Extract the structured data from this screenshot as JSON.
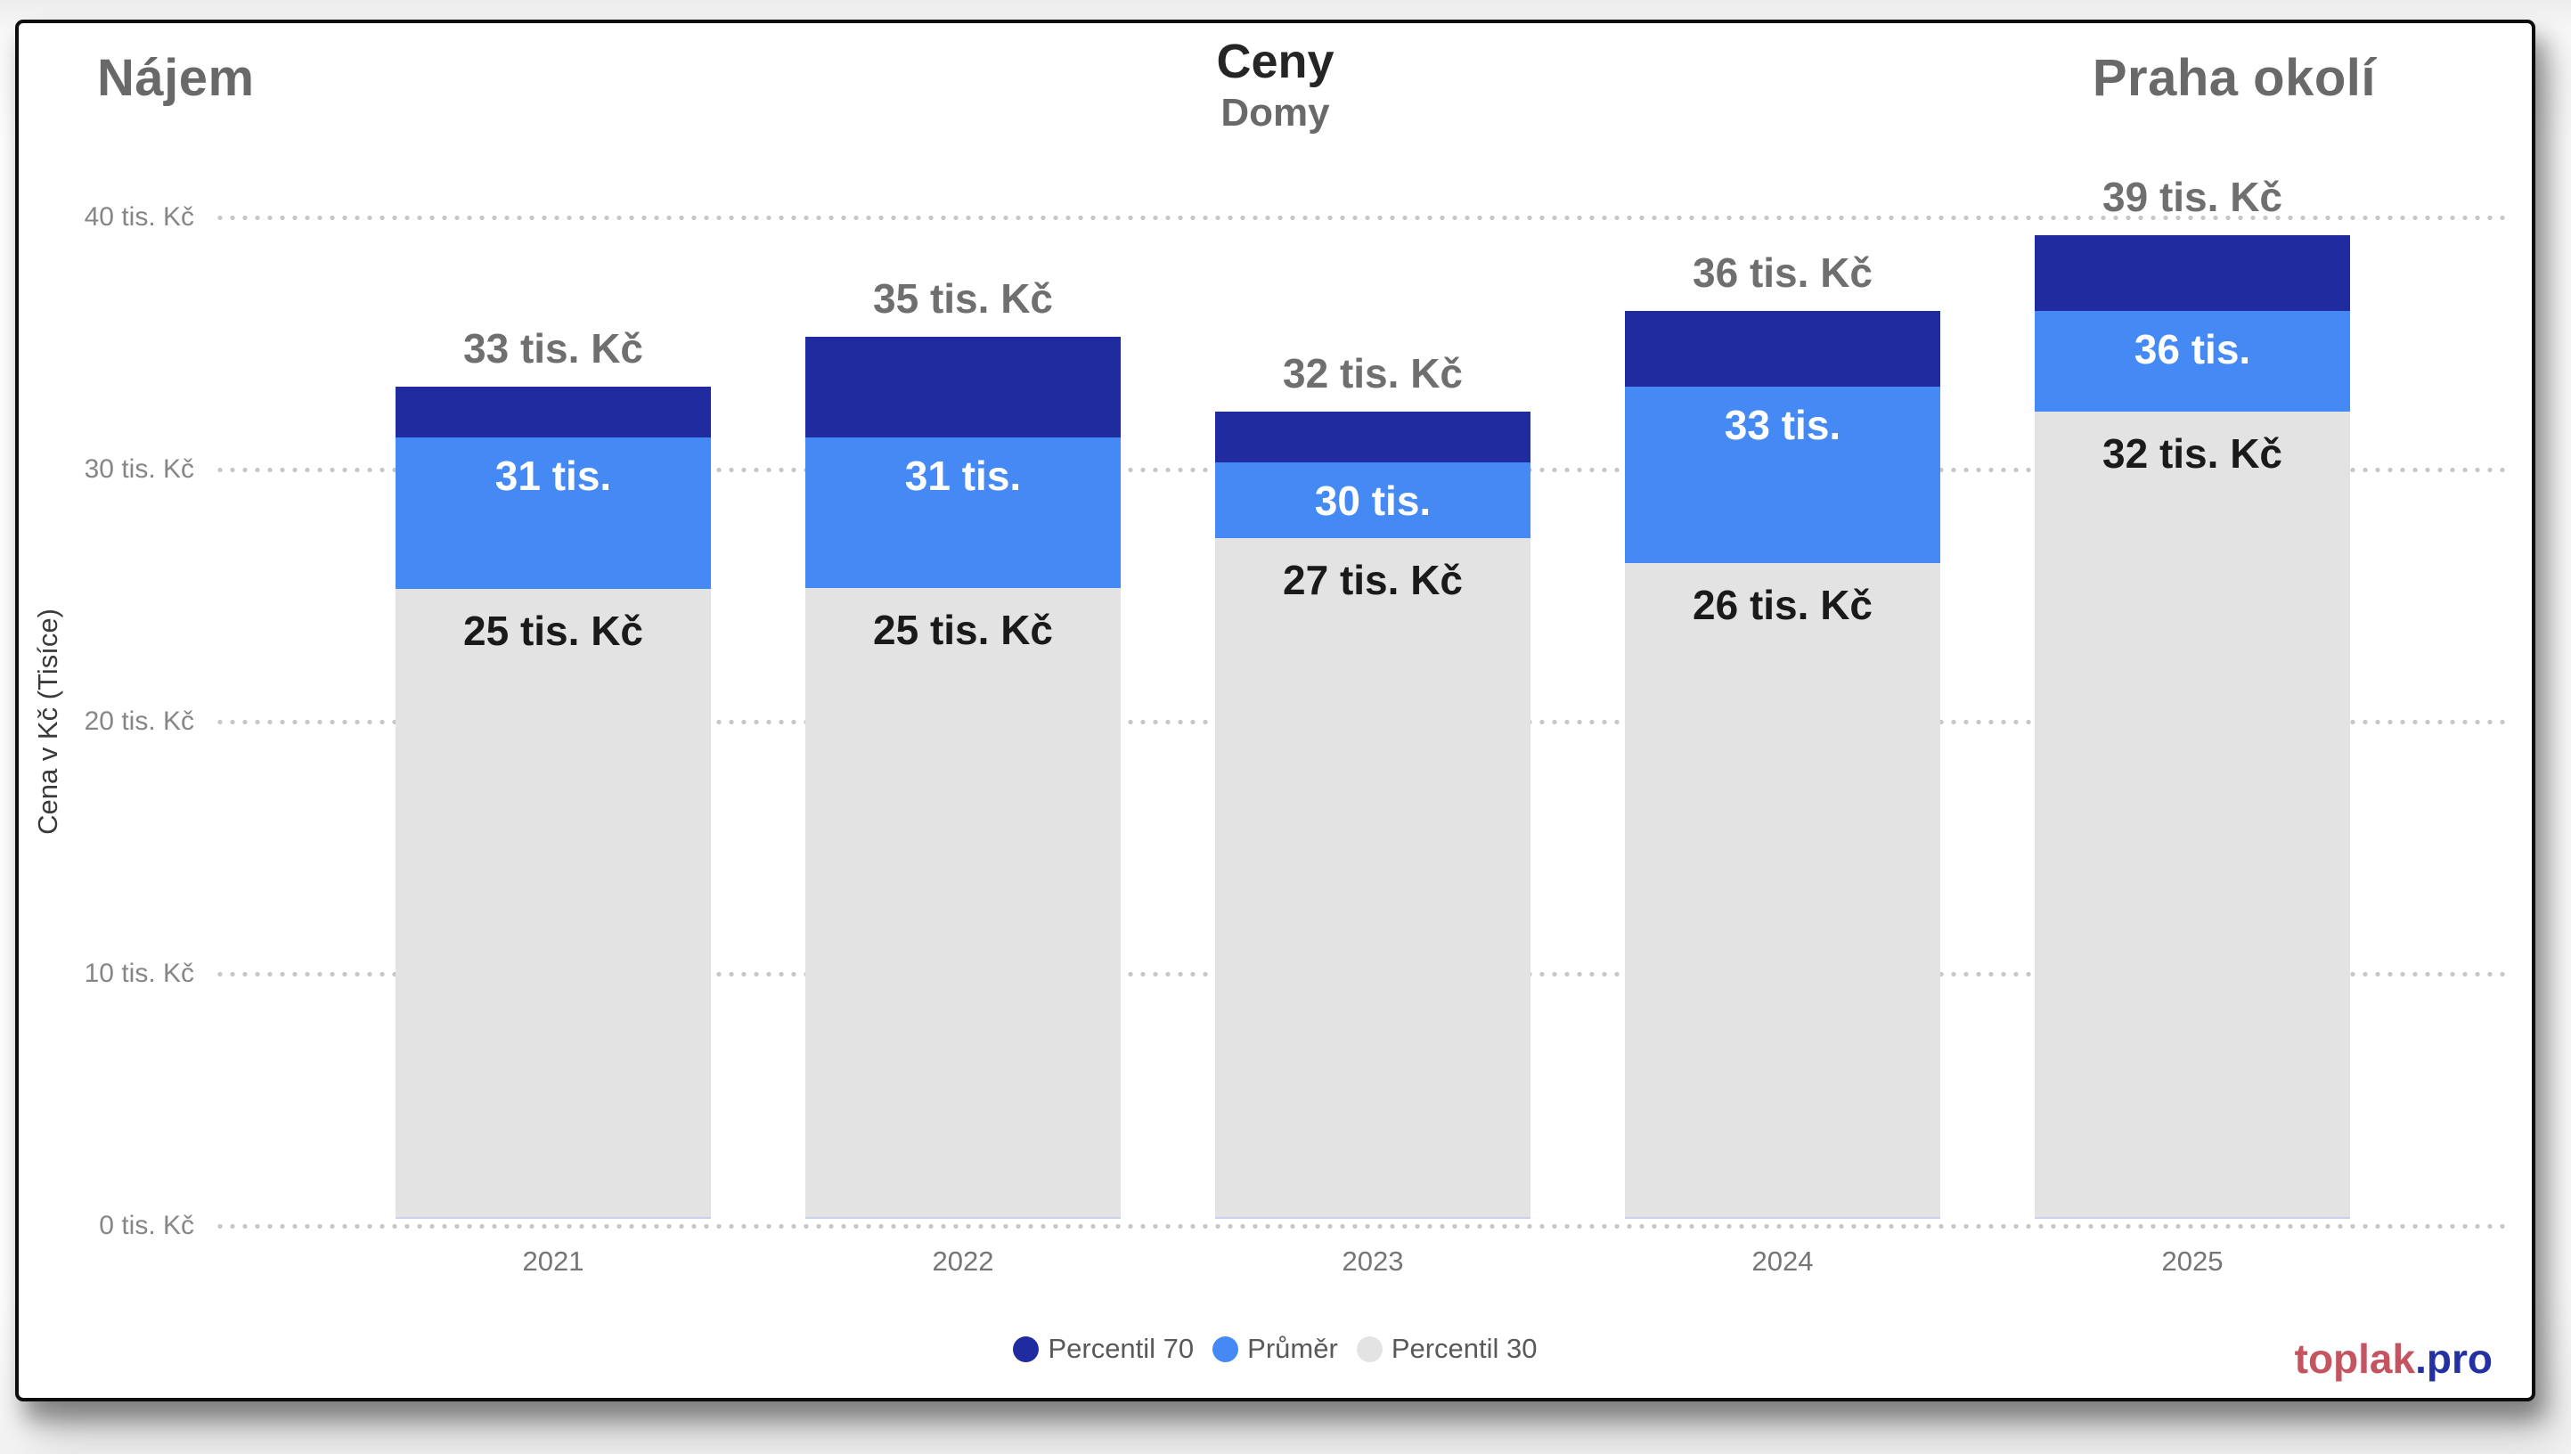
{
  "header": {
    "left_title": "Nájem",
    "center_title": "Ceny",
    "center_subtitle": "Domy",
    "right_title": "Praha okolí"
  },
  "chart_data": {
    "type": "bar",
    "subtype": "overlayed-percentile-columns",
    "title": "Ceny",
    "subtitle": "Domy",
    "categories": [
      "2021",
      "2022",
      "2023",
      "2024",
      "2025"
    ],
    "series": [
      {
        "name": "Percentil 70",
        "color": "#1f2b9e",
        "values": [
          33,
          35,
          32,
          36,
          39
        ]
      },
      {
        "name": "Průměr",
        "color": "#4589f5",
        "values": [
          31,
          31,
          30,
          33,
          36
        ]
      },
      {
        "name": "Percentil 30",
        "color": "#e3e3e3",
        "values": [
          25,
          25,
          27,
          26,
          32
        ]
      }
    ],
    "bar_labels": {
      "total": [
        "33 tis. Kč",
        "35 tis. Kč",
        "32 tis. Kč",
        "36 tis. Kč",
        "39 tis. Kč"
      ],
      "average": [
        "31 tis.",
        "31 tis.",
        "30 tis.",
        "33 tis.",
        "36 tis."
      ],
      "p30": [
        "25 tis. Kč",
        "25 tis. Kč",
        "27 tis. Kč",
        "26 tis. Kč",
        "32 tis. Kč"
      ]
    },
    "label_colors": {
      "total": "#6f6f6f",
      "average": "#ffffff",
      "p30": "#1a1a1a"
    },
    "xlabel": "",
    "ylabel": "Cena v Kč (Tisíce)",
    "yticks": [
      "0 tis. Kč",
      "10 tis. Kč",
      "20 tis. Kč",
      "30 tis. Kč",
      "40 tis. Kč"
    ],
    "ytick_values": [
      0,
      10,
      20,
      30,
      40
    ],
    "ylim": [
      0,
      40
    ],
    "grid": "horizontal-dotted",
    "legend_position": "bottom-center"
  },
  "legend": {
    "items": [
      {
        "label": "Percentil 70",
        "color": "#1f2b9e"
      },
      {
        "label": "Průměr",
        "color": "#4589f5"
      },
      {
        "label": "Percentil 30",
        "color": "#e3e3e3"
      }
    ]
  },
  "footer": {
    "brand_primary": "toplak",
    "brand_secondary": ".pro",
    "brand_primary_color": "#c4545f",
    "brand_secondary_color": "#2531a2"
  }
}
